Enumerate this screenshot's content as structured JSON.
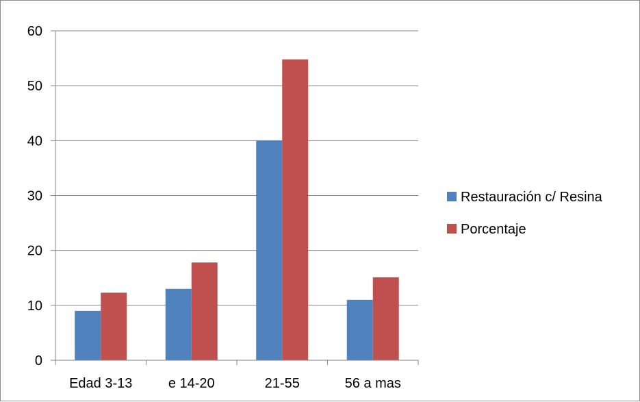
{
  "chart_data": {
    "type": "bar",
    "categories": [
      "Edad 3-13",
      "e 14-20",
      "21-55",
      "56 a mas"
    ],
    "series": [
      {
        "name": "Restauración c/ Resina",
        "values": [
          9,
          13,
          40,
          11
        ],
        "color": "#4f81bd"
      },
      {
        "name": "Porcentaje",
        "values": [
          12.3,
          17.8,
          54.8,
          15.1
        ],
        "color": "#c0504d"
      }
    ],
    "title": "",
    "xlabel": "",
    "ylabel": "",
    "ylim": [
      0,
      60
    ],
    "yticks": [
      "0",
      "10",
      "20",
      "30",
      "40",
      "50",
      "60"
    ],
    "grid": true,
    "legend_position": "right"
  }
}
